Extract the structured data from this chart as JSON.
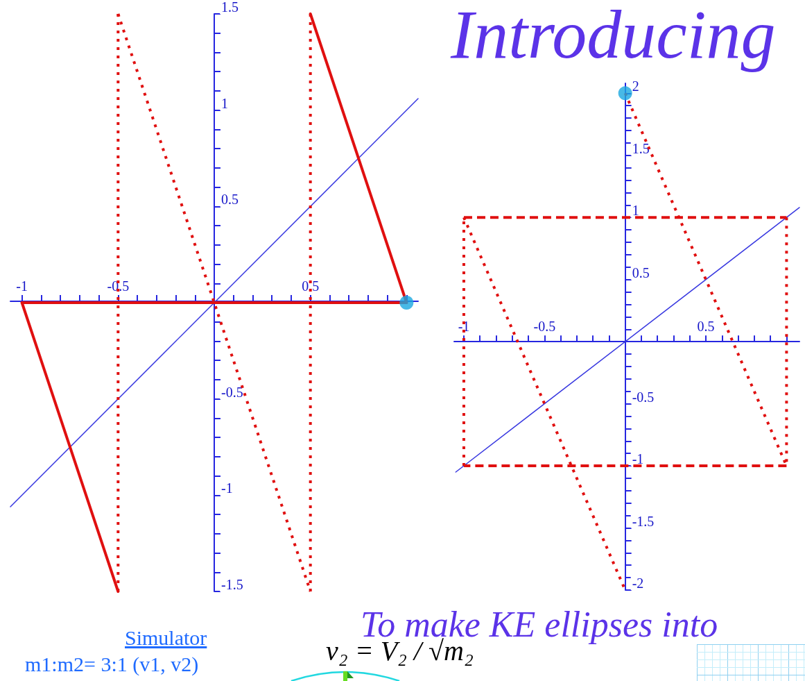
{
  "chart_data": [
    {
      "type": "line",
      "xlim": [
        -1.06,
        1.06
      ],
      "ylim": [
        -1.5,
        1.5
      ],
      "xticks": [
        -1,
        {
          "value": -0.9,
          "label": null
        },
        {
          "value": -0.8,
          "label": null
        },
        {
          "value": -0.7,
          "label": null
        },
        {
          "value": -0.6,
          "label": null
        },
        -0.5,
        {
          "value": -0.4,
          "label": null
        },
        {
          "value": -0.3,
          "label": null
        },
        {
          "value": -0.2,
          "label": null
        },
        {
          "value": -0.1,
          "label": null
        },
        {
          "value": 0.1,
          "label": null
        },
        {
          "value": 0.2,
          "label": null
        },
        {
          "value": 0.3,
          "label": null
        },
        {
          "value": 0.4,
          "label": null
        },
        0.5,
        {
          "value": 0.6,
          "label": null
        },
        {
          "value": 0.7,
          "label": null
        },
        {
          "value": 0.8,
          "label": null
        },
        {
          "value": 0.9,
          "label": null
        },
        {
          "value": 1,
          "label": null
        }
      ],
      "yticks": [
        -1.5,
        {
          "value": -1.4,
          "label": null
        },
        {
          "value": -1.3,
          "label": null
        },
        {
          "value": -1.2,
          "label": null
        },
        {
          "value": -1.1,
          "label": null
        },
        -1,
        {
          "value": -0.9,
          "label": null
        },
        {
          "value": -0.8,
          "label": null
        },
        {
          "value": -0.7,
          "label": null
        },
        {
          "value": -0.6,
          "label": null
        },
        -0.5,
        {
          "value": -0.4,
          "label": null
        },
        {
          "value": -0.3,
          "label": null
        },
        {
          "value": -0.2,
          "label": null
        },
        {
          "value": -0.1,
          "label": null
        },
        {
          "value": 0.1,
          "label": null
        },
        {
          "value": 0.2,
          "label": null
        },
        {
          "value": 0.3,
          "label": null
        },
        {
          "value": 0.4,
          "label": null
        },
        0.5,
        {
          "value": 0.6,
          "label": null
        },
        {
          "value": 0.7,
          "label": null
        },
        {
          "value": 0.8,
          "label": null
        },
        {
          "value": 0.9,
          "label": null
        },
        1,
        {
          "value": 1.1,
          "label": null
        },
        {
          "value": 1.2,
          "label": null
        },
        {
          "value": 1.3,
          "label": null
        },
        {
          "value": 1.4,
          "label": null
        },
        1.5
      ],
      "series": [
        {
          "color": "#e01010",
          "line_style": "solid",
          "x": [
            -1,
            1
          ],
          "values": [
            0,
            0
          ]
        },
        {
          "color": "#e01010",
          "line_style": "solid",
          "x": [
            -1,
            -0.5
          ],
          "values": [
            0,
            -1.5
          ]
        },
        {
          "color": "#e01010",
          "line_style": "dotted",
          "x": [
            -0.5,
            -0.5
          ],
          "values": [
            -1.5,
            1.5
          ]
        },
        {
          "color": "#e01010",
          "line_style": "dotted",
          "x": [
            -0.5,
            0.5
          ],
          "values": [
            1.5,
            -1.5
          ]
        },
        {
          "color": "#e01010",
          "line_style": "dotted",
          "x": [
            0.5,
            0.5
          ],
          "values": [
            -1.5,
            1.5
          ]
        },
        {
          "color": "#e01010",
          "line_style": "solid",
          "x": [
            0.5,
            1
          ],
          "values": [
            1.5,
            0
          ]
        },
        {
          "color": "#3838e0",
          "line_style": "solid",
          "x": [
            -1.06,
            1.06
          ],
          "values": [
            -1.06,
            1.06
          ]
        },
        {
          "type": "scatter",
          "marker": "circle",
          "color": "#1aa8e0",
          "x": [
            1
          ],
          "values": [
            0
          ]
        }
      ]
    },
    {
      "type": "line",
      "xlim": [
        -1.06,
        1.08
      ],
      "ylim": [
        -2,
        2.08
      ],
      "xticks": [
        -1,
        {
          "value": -0.9,
          "label": null
        },
        {
          "value": -0.8,
          "label": null
        },
        {
          "value": -0.7,
          "label": null
        },
        {
          "value": -0.6,
          "label": null
        },
        -0.5,
        {
          "value": -0.4,
          "label": null
        },
        {
          "value": -0.3,
          "label": null
        },
        {
          "value": -0.2,
          "label": null
        },
        {
          "value": -0.1,
          "label": null
        },
        {
          "value": 0.1,
          "label": null
        },
        {
          "value": 0.2,
          "label": null
        },
        {
          "value": 0.3,
          "label": null
        },
        {
          "value": 0.4,
          "label": null
        },
        0.5,
        {
          "value": 0.6,
          "label": null
        },
        {
          "value": 0.7,
          "label": null
        },
        {
          "value": 0.8,
          "label": null
        },
        {
          "value": 0.9,
          "label": null
        },
        {
          "value": 1,
          "label": null
        }
      ],
      "yticks": [
        -2,
        {
          "value": -1.9,
          "label": null
        },
        {
          "value": -1.8,
          "label": null
        },
        {
          "value": -1.7,
          "label": null
        },
        {
          "value": -1.6,
          "label": null
        },
        -1.5,
        {
          "value": -1.4,
          "label": null
        },
        {
          "value": -1.3,
          "label": null
        },
        {
          "value": -1.2,
          "label": null
        },
        {
          "value": -1.1,
          "label": null
        },
        -1,
        {
          "value": -0.9,
          "label": null
        },
        {
          "value": -0.8,
          "label": null
        },
        {
          "value": -0.7,
          "label": null
        },
        {
          "value": -0.6,
          "label": null
        },
        -0.5,
        {
          "value": -0.4,
          "label": null
        },
        {
          "value": -0.3,
          "label": null
        },
        {
          "value": -0.2,
          "label": null
        },
        {
          "value": -0.1,
          "label": null
        },
        {
          "value": 0.1,
          "label": null
        },
        {
          "value": 0.2,
          "label": null
        },
        {
          "value": 0.3,
          "label": null
        },
        {
          "value": 0.4,
          "label": null
        },
        0.5,
        {
          "value": 0.6,
          "label": null
        },
        {
          "value": 0.7,
          "label": null
        },
        {
          "value": 0.8,
          "label": null
        },
        {
          "value": 0.9,
          "label": null
        },
        1,
        {
          "value": 1.1,
          "label": null
        },
        {
          "value": 1.2,
          "label": null
        },
        {
          "value": 1.3,
          "label": null
        },
        {
          "value": 1.4,
          "label": null
        },
        1.5,
        {
          "value": 1.6,
          "label": null
        },
        {
          "value": 1.7,
          "label": null
        },
        {
          "value": 1.8,
          "label": null
        },
        {
          "value": 1.9,
          "label": null
        },
        2
      ],
      "series": [
        {
          "color": "#e01010",
          "line_style": "dashed",
          "x": [
            -1,
            1
          ],
          "values": [
            1,
            1
          ]
        },
        {
          "color": "#e01010",
          "line_style": "dotted",
          "x": [
            1,
            1
          ],
          "values": [
            1,
            -1
          ]
        },
        {
          "color": "#e01010",
          "line_style": "dashed",
          "x": [
            1,
            -1
          ],
          "values": [
            -1,
            -1
          ]
        },
        {
          "color": "#e01010",
          "line_style": "dotted",
          "x": [
            -1,
            -1
          ],
          "values": [
            -1,
            1
          ]
        },
        {
          "color": "#e01010",
          "line_style": "dotted",
          "x": [
            -1,
            0
          ],
          "values": [
            1,
            -2
          ]
        },
        {
          "color": "#e01010",
          "line_style": "dotted",
          "x": [
            0,
            1
          ],
          "values": [
            2,
            -1
          ]
        },
        {
          "color": "#3838e0",
          "line_style": "solid",
          "x": [
            -1.05,
            1.08
          ],
          "values": [
            -1.05,
            1.08
          ]
        },
        {
          "type": "scatter",
          "marker": "circle",
          "color": "#1aa8e0",
          "x": [
            0
          ],
          "values": [
            2
          ]
        }
      ]
    },
    {
      "type": "other",
      "annotations": [
        "Introducing",
        "To make KE ellipses into",
        "Simulator",
        "m1:m2= 3:1 (v1, v2)",
        "v₂ = V₂ / √m₂"
      ]
    }
  ]
}
